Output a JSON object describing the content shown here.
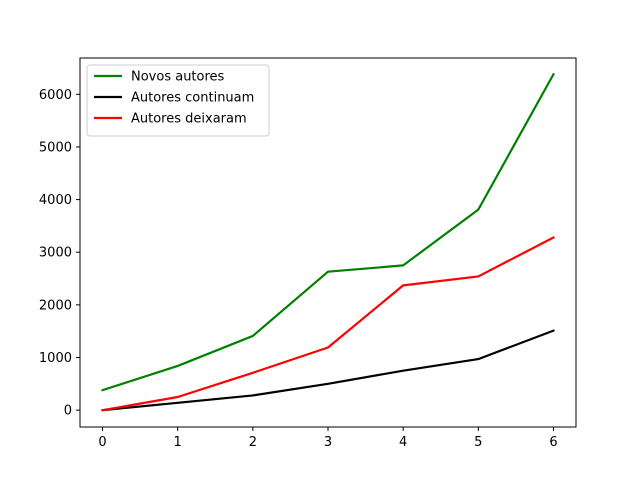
{
  "chart_data": {
    "type": "line",
    "title": "",
    "xlabel": "",
    "ylabel": "",
    "x": [
      0,
      1,
      2,
      3,
      4,
      5,
      6
    ],
    "xlim": [
      -0.3,
      6.3
    ],
    "ylim": [
      -320,
      6690
    ],
    "xticks": [
      "0",
      "1",
      "2",
      "3",
      "4",
      "5",
      "6"
    ],
    "yticks": [
      {
        "value": 0,
        "label": "0"
      },
      {
        "value": 1000,
        "label": "1000"
      },
      {
        "value": 2000,
        "label": "2000"
      },
      {
        "value": 3000,
        "label": "3000"
      },
      {
        "value": 4000,
        "label": "4000"
      },
      {
        "value": 5000,
        "label": "5000"
      },
      {
        "value": 6000,
        "label": "6000"
      }
    ],
    "grid": false,
    "legend_position": "top-left",
    "series": [
      {
        "name": "Novos autores",
        "color": "#008000",
        "values": [
          380,
          840,
          1410,
          2630,
          2750,
          3810,
          6380
        ]
      },
      {
        "name": "Autores continuam",
        "color": "#000000",
        "values": [
          0,
          140,
          280,
          500,
          750,
          970,
          1510
        ]
      },
      {
        "name": "Autores deixaram",
        "color": "#ff0000",
        "values": [
          0,
          250,
          710,
          1190,
          2370,
          2540,
          3280
        ]
      }
    ]
  }
}
